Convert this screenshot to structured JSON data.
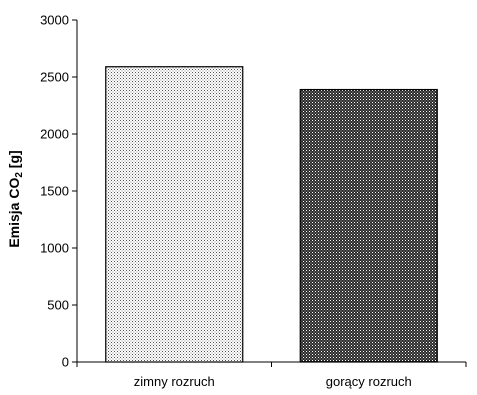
{
  "chart_data": {
    "type": "bar",
    "categories": [
      "zimny rozruch",
      "gorący rozruch"
    ],
    "values": [
      2590,
      2390
    ],
    "ylabel": {
      "main": "Emisja CO",
      "sub": "2",
      "unit": " [g]"
    },
    "ylim": [
      0,
      3000
    ],
    "yticks": [
      0,
      500,
      1000,
      1500,
      2000,
      2500,
      3000
    ],
    "grid": false,
    "legend": "none",
    "bar_patterns": [
      "light-dotted",
      "dark-crosshatch"
    ]
  }
}
